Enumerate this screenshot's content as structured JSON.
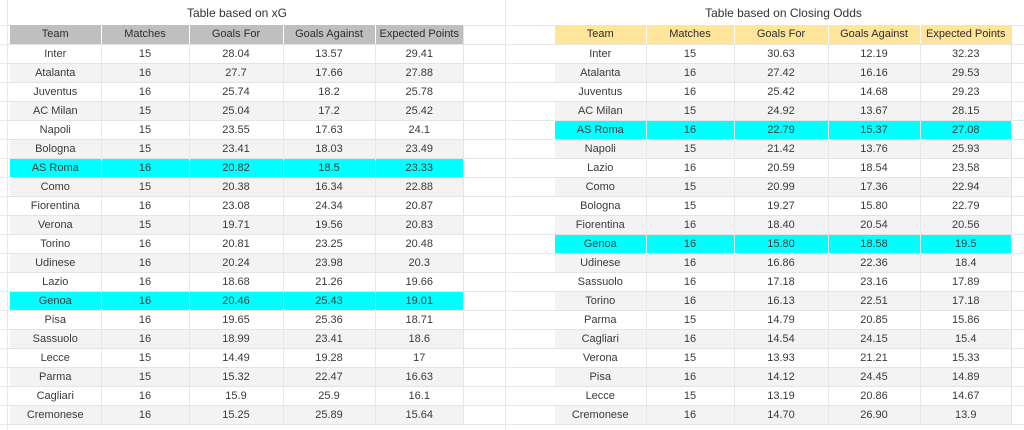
{
  "colors": {
    "header_xg": "#bfbfbf",
    "header_odds": "#ffe599",
    "highlight": "#00ffff",
    "row_alt": "#f3f3f3"
  },
  "tables": [
    {
      "title": "Table based on xG",
      "columns": [
        "Team",
        "Matches",
        "Goals For",
        "Goals Against",
        "Expected Points"
      ],
      "rows": [
        {
          "team": "Inter",
          "matches": "15",
          "goals_for": "28.04",
          "goals_against": "13.57",
          "expected_points": "29.41",
          "highlight": false
        },
        {
          "team": "Atalanta",
          "matches": "16",
          "goals_for": "27.7",
          "goals_against": "17.66",
          "expected_points": "27.88",
          "highlight": false
        },
        {
          "team": "Juventus",
          "matches": "16",
          "goals_for": "25.74",
          "goals_against": "18.2",
          "expected_points": "25.78",
          "highlight": false
        },
        {
          "team": "AC Milan",
          "matches": "15",
          "goals_for": "25.04",
          "goals_against": "17.2",
          "expected_points": "25.42",
          "highlight": false
        },
        {
          "team": "Napoli",
          "matches": "15",
          "goals_for": "23.55",
          "goals_against": "17.63",
          "expected_points": "24.1",
          "highlight": false
        },
        {
          "team": "Bologna",
          "matches": "15",
          "goals_for": "23.41",
          "goals_against": "18.03",
          "expected_points": "23.49",
          "highlight": false
        },
        {
          "team": "AS Roma",
          "matches": "16",
          "goals_for": "20.82",
          "goals_against": "18.5",
          "expected_points": "23.33",
          "highlight": true
        },
        {
          "team": "Como",
          "matches": "15",
          "goals_for": "20.38",
          "goals_against": "16.34",
          "expected_points": "22.88",
          "highlight": false
        },
        {
          "team": "Fiorentina",
          "matches": "16",
          "goals_for": "23.08",
          "goals_against": "24.34",
          "expected_points": "20.87",
          "highlight": false
        },
        {
          "team": "Verona",
          "matches": "15",
          "goals_for": "19.71",
          "goals_against": "19.56",
          "expected_points": "20.83",
          "highlight": false
        },
        {
          "team": "Torino",
          "matches": "16",
          "goals_for": "20.81",
          "goals_against": "23.25",
          "expected_points": "20.48",
          "highlight": false
        },
        {
          "team": "Udinese",
          "matches": "16",
          "goals_for": "20.24",
          "goals_against": "23.98",
          "expected_points": "20.3",
          "highlight": false
        },
        {
          "team": "Lazio",
          "matches": "16",
          "goals_for": "18.68",
          "goals_against": "21.26",
          "expected_points": "19.66",
          "highlight": false
        },
        {
          "team": "Genoa",
          "matches": "16",
          "goals_for": "20.46",
          "goals_against": "25.43",
          "expected_points": "19.01",
          "highlight": true
        },
        {
          "team": "Pisa",
          "matches": "16",
          "goals_for": "19.65",
          "goals_against": "25.36",
          "expected_points": "18.71",
          "highlight": false
        },
        {
          "team": "Sassuolo",
          "matches": "16",
          "goals_for": "18.99",
          "goals_against": "23.41",
          "expected_points": "18.6",
          "highlight": false
        },
        {
          "team": "Lecce",
          "matches": "15",
          "goals_for": "14.49",
          "goals_against": "19.28",
          "expected_points": "17",
          "highlight": false
        },
        {
          "team": "Parma",
          "matches": "15",
          "goals_for": "15.32",
          "goals_against": "22.47",
          "expected_points": "16.63",
          "highlight": false
        },
        {
          "team": "Cagliari",
          "matches": "16",
          "goals_for": "15.9",
          "goals_against": "25.9",
          "expected_points": "16.1",
          "highlight": false
        },
        {
          "team": "Cremonese",
          "matches": "16",
          "goals_for": "15.25",
          "goals_against": "25.89",
          "expected_points": "15.64",
          "highlight": false
        }
      ]
    },
    {
      "title": "Table based on Closing Odds",
      "columns": [
        "Team",
        "Matches",
        "Goals For",
        "Goals Against",
        "Expected Points"
      ],
      "rows": [
        {
          "team": "Inter",
          "matches": "15",
          "goals_for": "30.63",
          "goals_against": "12.19",
          "expected_points": "32.23",
          "highlight": false
        },
        {
          "team": "Atalanta",
          "matches": "16",
          "goals_for": "27.42",
          "goals_against": "16.16",
          "expected_points": "29.53",
          "highlight": false
        },
        {
          "team": "Juventus",
          "matches": "16",
          "goals_for": "25.42",
          "goals_against": "14.68",
          "expected_points": "29.23",
          "highlight": false
        },
        {
          "team": "AC Milan",
          "matches": "15",
          "goals_for": "24.92",
          "goals_against": "13.67",
          "expected_points": "28.15",
          "highlight": false
        },
        {
          "team": "AS Roma",
          "matches": "16",
          "goals_for": "22.79",
          "goals_against": "15.37",
          "expected_points": "27.08",
          "highlight": true
        },
        {
          "team": "Napoli",
          "matches": "15",
          "goals_for": "21.42",
          "goals_against": "13.76",
          "expected_points": "25.93",
          "highlight": false
        },
        {
          "team": "Lazio",
          "matches": "16",
          "goals_for": "20.59",
          "goals_against": "18.54",
          "expected_points": "23.58",
          "highlight": false
        },
        {
          "team": "Como",
          "matches": "15",
          "goals_for": "20.99",
          "goals_against": "17.36",
          "expected_points": "22.94",
          "highlight": false
        },
        {
          "team": "Bologna",
          "matches": "15",
          "goals_for": "19.27",
          "goals_against": "15.80",
          "expected_points": "22.79",
          "highlight": false
        },
        {
          "team": "Fiorentina",
          "matches": "16",
          "goals_for": "18.40",
          "goals_against": "20.54",
          "expected_points": "20.56",
          "highlight": false
        },
        {
          "team": "Genoa",
          "matches": "16",
          "goals_for": "15.80",
          "goals_against": "18.58",
          "expected_points": "19.5",
          "highlight": true
        },
        {
          "team": "Udinese",
          "matches": "16",
          "goals_for": "16.86",
          "goals_against": "22.36",
          "expected_points": "18.4",
          "highlight": false
        },
        {
          "team": "Sassuolo",
          "matches": "16",
          "goals_for": "17.18",
          "goals_against": "23.16",
          "expected_points": "17.89",
          "highlight": false
        },
        {
          "team": "Torino",
          "matches": "16",
          "goals_for": "16.13",
          "goals_against": "22.51",
          "expected_points": "17.18",
          "highlight": false
        },
        {
          "team": "Parma",
          "matches": "15",
          "goals_for": "14.79",
          "goals_against": "20.85",
          "expected_points": "15.86",
          "highlight": false
        },
        {
          "team": "Cagliari",
          "matches": "16",
          "goals_for": "14.54",
          "goals_against": "24.15",
          "expected_points": "15.4",
          "highlight": false
        },
        {
          "team": "Verona",
          "matches": "15",
          "goals_for": "13.93",
          "goals_against": "21.21",
          "expected_points": "15.33",
          "highlight": false
        },
        {
          "team": "Pisa",
          "matches": "16",
          "goals_for": "14.12",
          "goals_against": "24.45",
          "expected_points": "14.89",
          "highlight": false
        },
        {
          "team": "Lecce",
          "matches": "15",
          "goals_for": "13.19",
          "goals_against": "20.86",
          "expected_points": "14.67",
          "highlight": false
        },
        {
          "team": "Cremonese",
          "matches": "16",
          "goals_for": "14.70",
          "goals_against": "26.90",
          "expected_points": "13.9",
          "highlight": false
        }
      ]
    }
  ]
}
